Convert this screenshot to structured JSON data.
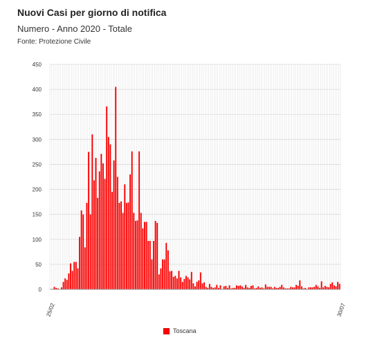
{
  "header": {
    "title": "Nuovi Casi per giorno di notifica",
    "subtitle": "Numero - Anno 2020 - Totale",
    "source": "Fonte: Protezione Civile"
  },
  "chart_data": {
    "type": "bar",
    "title": "Nuovi Casi per giorno di notifica",
    "subtitle": "Numero - Anno 2020 - Totale",
    "xlabel": "",
    "ylabel": "",
    "ylim": [
      0,
      450
    ],
    "yticks": [
      0,
      50,
      100,
      150,
      200,
      250,
      300,
      350,
      400,
      450
    ],
    "x_tick_labels": [
      "25/02",
      "30/07"
    ],
    "grid": true,
    "legend_position": "bottom",
    "bar_color": "#ff0000",
    "series": [
      {
        "name": "Toscana",
        "values": [
          0,
          1,
          5,
          3,
          2,
          0,
          4,
          15,
          22,
          19,
          32,
          52,
          37,
          55,
          55,
          42,
          105,
          158,
          150,
          84,
          173,
          275,
          150,
          310,
          218,
          263,
          183,
          236,
          271,
          252,
          221,
          366,
          305,
          290,
          195,
          258,
          405,
          225,
          173,
          176,
          153,
          210,
          173,
          174,
          230,
          276,
          153,
          137,
          138,
          276,
          153,
          122,
          135,
          135,
          97,
          97,
          60,
          97,
          137,
          133,
          30,
          42,
          60,
          60,
          93,
          78,
          36,
          37,
          25,
          27,
          22,
          37,
          24,
          15,
          21,
          27,
          24,
          20,
          35,
          12,
          6,
          15,
          18,
          34,
          12,
          14,
          5,
          3,
          11,
          5,
          3,
          4,
          9,
          3,
          8,
          1,
          6,
          7,
          3,
          8,
          2,
          3,
          3,
          8,
          7,
          8,
          6,
          3,
          9,
          4,
          3,
          7,
          8,
          2,
          3,
          6,
          3,
          4,
          2,
          10,
          5,
          5,
          5,
          2,
          5,
          3,
          3,
          5,
          9,
          4,
          2,
          2,
          2,
          5,
          4,
          4,
          9,
          7,
          18,
          6,
          2,
          3,
          1,
          4,
          4,
          4,
          5,
          9,
          6,
          3,
          16,
          4,
          7,
          5,
          4,
          11,
          14,
          8,
          6,
          15,
          11
        ]
      }
    ]
  },
  "legend": {
    "label": "Toscana",
    "color": "#ff0000"
  }
}
